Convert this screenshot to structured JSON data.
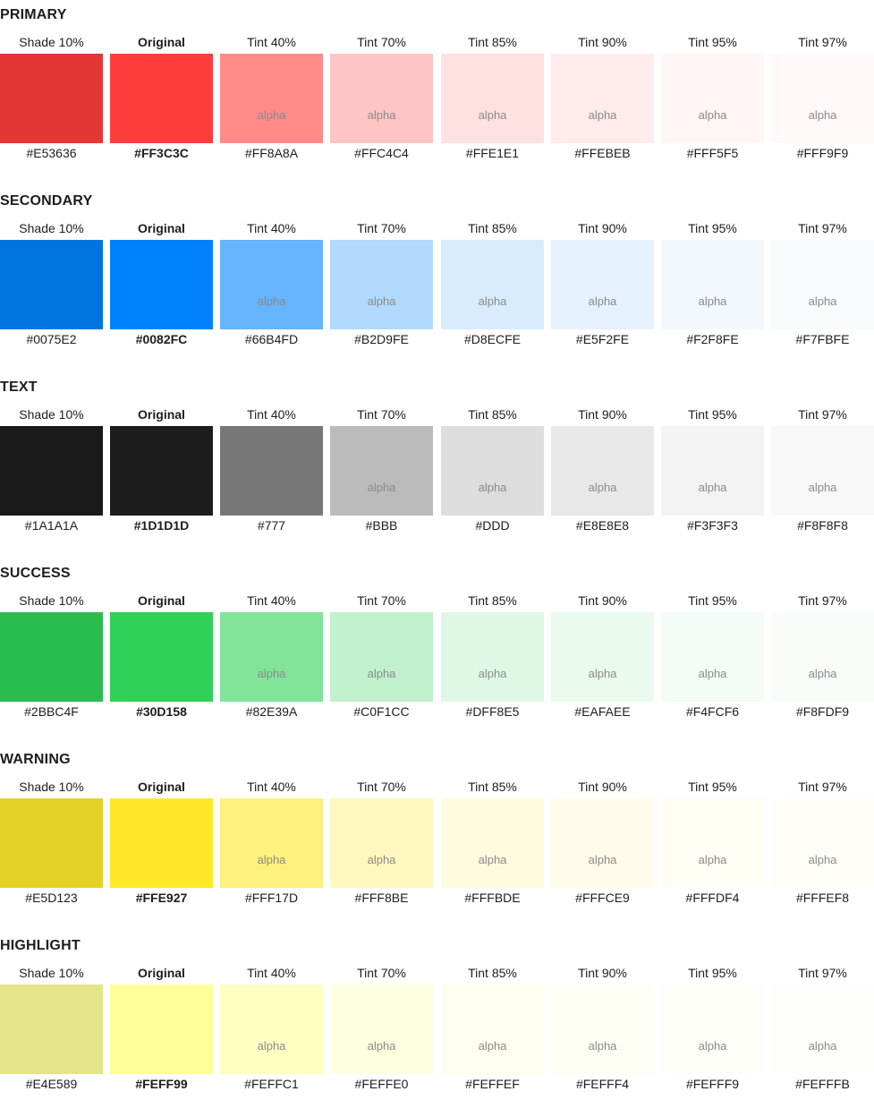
{
  "groups": [
    {
      "title": "PRIMARY",
      "swatches": [
        {
          "label": "Shade 10%",
          "hex": "#E53636",
          "color": "#E53636",
          "alpha": ""
        },
        {
          "label": "Original",
          "hex": "#FF3C3C",
          "color": "#FF3C3C",
          "alpha": ""
        },
        {
          "label": "Tint 40%",
          "hex": "#FF8A8A",
          "color": "#FF8A8A",
          "alpha": "alpha"
        },
        {
          "label": "Tint 70%",
          "hex": "#FFC4C4",
          "color": "#FFC4C4",
          "alpha": "alpha"
        },
        {
          "label": "Tint 85%",
          "hex": "#FFE1E1",
          "color": "#FFE1E1",
          "alpha": "alpha"
        },
        {
          "label": "Tint 90%",
          "hex": "#FFEBEB",
          "color": "#FFEBEB",
          "alpha": "alpha"
        },
        {
          "label": "Tint 95%",
          "hex": "#FFF5F5",
          "color": "#FFF5F5",
          "alpha": "alpha"
        },
        {
          "label": "Tint 97%",
          "hex": "#FFF9F9",
          "color": "#FFF9F9",
          "alpha": "alpha"
        }
      ]
    },
    {
      "title": "SECONDARY",
      "swatches": [
        {
          "label": "Shade 10%",
          "hex": "#0075E2",
          "color": "#0075E2",
          "alpha": ""
        },
        {
          "label": "Original",
          "hex": "#0082FC",
          "color": "#0082FC",
          "alpha": ""
        },
        {
          "label": "Tint 40%",
          "hex": "#66B4FD",
          "color": "#66B4FD",
          "alpha": "alpha"
        },
        {
          "label": "Tint 70%",
          "hex": "#B2D9FE",
          "color": "#B2D9FE",
          "alpha": "alpha"
        },
        {
          "label": "Tint 85%",
          "hex": "#D8ECFE",
          "color": "#D8ECFE",
          "alpha": "alpha"
        },
        {
          "label": "Tint 90%",
          "hex": "#E5F2FE",
          "color": "#E5F2FE",
          "alpha": "alpha"
        },
        {
          "label": "Tint 95%",
          "hex": "#F2F8FE",
          "color": "#F2F8FE",
          "alpha": "alpha"
        },
        {
          "label": "Tint 97%",
          "hex": "#F7FBFE",
          "color": "#F7FBFE",
          "alpha": "alpha"
        }
      ]
    },
    {
      "title": "TEXT",
      "swatches": [
        {
          "label": "Shade 10%",
          "hex": "#1A1A1A",
          "color": "#1A1A1A",
          "alpha": ""
        },
        {
          "label": "Original",
          "hex": "#1D1D1D",
          "color": "#1D1D1D",
          "alpha": ""
        },
        {
          "label": "Tint 40%",
          "hex": "#777",
          "color": "#777777",
          "alpha": ""
        },
        {
          "label": "Tint 70%",
          "hex": "#BBB",
          "color": "#BBBBBB",
          "alpha": "alpha"
        },
        {
          "label": "Tint 85%",
          "hex": "#DDD",
          "color": "#DDDDDD",
          "alpha": "alpha"
        },
        {
          "label": "Tint 90%",
          "hex": "#E8E8E8",
          "color": "#E8E8E8",
          "alpha": "alpha"
        },
        {
          "label": "Tint 95%",
          "hex": "#F3F3F3",
          "color": "#F3F3F3",
          "alpha": "alpha"
        },
        {
          "label": "Tint 97%",
          "hex": "#F8F8F8",
          "color": "#F8F8F8",
          "alpha": "alpha"
        }
      ]
    },
    {
      "title": "SUCCESS",
      "swatches": [
        {
          "label": "Shade 10%",
          "hex": "#2BBC4F",
          "color": "#2BBC4F",
          "alpha": ""
        },
        {
          "label": "Original",
          "hex": "#30D158",
          "color": "#30D158",
          "alpha": ""
        },
        {
          "label": "Tint 40%",
          "hex": "#82E39A",
          "color": "#82E39A",
          "alpha": "alpha"
        },
        {
          "label": "Tint 70%",
          "hex": "#C0F1CC",
          "color": "#C0F1CC",
          "alpha": "alpha"
        },
        {
          "label": "Tint 85%",
          "hex": "#DFF8E5",
          "color": "#DFF8E5",
          "alpha": "alpha"
        },
        {
          "label": "Tint 90%",
          "hex": "#EAFAEE",
          "color": "#EAFAEE",
          "alpha": "alpha"
        },
        {
          "label": "Tint 95%",
          "hex": "#F4FCF6",
          "color": "#F4FCF6",
          "alpha": "alpha"
        },
        {
          "label": "Tint 97%",
          "hex": "#F8FDF9",
          "color": "#F8FDF9",
          "alpha": "alpha"
        }
      ]
    },
    {
      "title": "WARNING",
      "swatches": [
        {
          "label": "Shade 10%",
          "hex": "#E5D123",
          "color": "#E5D123",
          "alpha": ""
        },
        {
          "label": "Original",
          "hex": "#FFE927",
          "color": "#FFE927",
          "alpha": ""
        },
        {
          "label": "Tint 40%",
          "hex": "#FFF17D",
          "color": "#FFF17D",
          "alpha": "alpha"
        },
        {
          "label": "Tint 70%",
          "hex": "#FFF8BE",
          "color": "#FFF8BE",
          "alpha": "alpha"
        },
        {
          "label": "Tint 85%",
          "hex": "#FFFBDE",
          "color": "#FFFBDE",
          "alpha": "alpha"
        },
        {
          "label": "Tint 90%",
          "hex": "#FFFCE9",
          "color": "#FFFCE9",
          "alpha": "alpha"
        },
        {
          "label": "Tint 95%",
          "hex": "#FFFDF4",
          "color": "#FFFDF4",
          "alpha": "alpha"
        },
        {
          "label": "Tint 97%",
          "hex": "#FFFEF8",
          "color": "#FFFEF8",
          "alpha": "alpha"
        }
      ]
    },
    {
      "title": "HIGHLIGHT",
      "swatches": [
        {
          "label": "Shade 10%",
          "hex": "#E4E589",
          "color": "#E4E589",
          "alpha": ""
        },
        {
          "label": "Original",
          "hex": "#FEFF99",
          "color": "#FEFF99",
          "alpha": ""
        },
        {
          "label": "Tint 40%",
          "hex": "#FEFFC1",
          "color": "#FEFFC1",
          "alpha": "alpha"
        },
        {
          "label": "Tint 70%",
          "hex": "#FEFFE0",
          "color": "#FEFFE0",
          "alpha": "alpha"
        },
        {
          "label": "Tint 85%",
          "hex": "#FEFFEF",
          "color": "#FEFFEF",
          "alpha": "alpha"
        },
        {
          "label": "Tint 90%",
          "hex": "#FEFFF4",
          "color": "#FEFFF4",
          "alpha": "alpha"
        },
        {
          "label": "Tint 95%",
          "hex": "#FEFFF9",
          "color": "#FEFFF9",
          "alpha": "alpha"
        },
        {
          "label": "Tint 97%",
          "hex": "#FEFFFB",
          "color": "#FEFFFB",
          "alpha": "alpha"
        }
      ]
    }
  ]
}
